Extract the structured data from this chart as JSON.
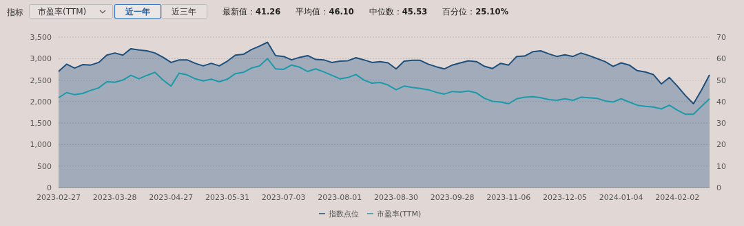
{
  "chart_data": {
    "type": "area",
    "annotations": [
      "指标",
      "市盈率(TTM)",
      "近一年",
      "近三年",
      "最新值：41.26",
      "平均值：46.10",
      "中位数：45.53",
      "百分位：25.10%"
    ],
    "categories": [
      "2023-02-27",
      null,
      null,
      null,
      null,
      null,
      null,
      "2023-03-28",
      null,
      null,
      null,
      null,
      null,
      null,
      "2023-04-27",
      null,
      null,
      null,
      null,
      null,
      null,
      "2023-05-31",
      null,
      null,
      null,
      null,
      null,
      null,
      "2023-07-03",
      null,
      null,
      null,
      null,
      null,
      null,
      "2023-08-01",
      null,
      null,
      null,
      null,
      null,
      null,
      "2023-08-30",
      null,
      null,
      null,
      null,
      null,
      null,
      "2023-09-28",
      null,
      null,
      null,
      null,
      null,
      null,
      "2023-11-06",
      null,
      null,
      null,
      null,
      null,
      null,
      "2023-12-05",
      null,
      null,
      null,
      null,
      null,
      null,
      "2024-01-04",
      null,
      null,
      null,
      null,
      null,
      null,
      "2024-02-02",
      null,
      null,
      null,
      null
    ],
    "series": [
      {
        "name": "指数点位",
        "color": "#1d4f7c",
        "values": [
          2700,
          2870,
          2780,
          2860,
          2850,
          2910,
          3080,
          3130,
          3080,
          3230,
          3200,
          3180,
          3130,
          3030,
          2910,
          2970,
          2970,
          2890,
          2830,
          2890,
          2830,
          2940,
          3080,
          3100,
          3210,
          3290,
          3380,
          3070,
          3050,
          2970,
          3030,
          3070,
          2980,
          2970,
          2910,
          2940,
          2950,
          3020,
          2970,
          2910,
          2930,
          2900,
          2760,
          2940,
          2960,
          2960,
          2870,
          2810,
          2760,
          2850,
          2900,
          2950,
          2930,
          2820,
          2770,
          2890,
          2850,
          3050,
          3060,
          3160,
          3180,
          3110,
          3050,
          3090,
          3050,
          3130,
          3070,
          3000,
          2930,
          2820,
          2900,
          2850,
          2720,
          2690,
          2630,
          2410,
          2560,
          2360,
          2140,
          1950,
          2270,
          2620
        ]
      },
      {
        "name": "市盈率(TTM)",
        "type": "line",
        "axis": "y2",
        "color": "#1a9aaa",
        "values": [
          41.8,
          44.2,
          43.2,
          43.8,
          45.2,
          46.4,
          49.2,
          49,
          50,
          52.2,
          50.6,
          52.2,
          53.6,
          50,
          47.2,
          53.2,
          52.4,
          50.6,
          49.6,
          50.4,
          49.2,
          50.4,
          53,
          53.6,
          55.6,
          56.6,
          60,
          55.2,
          55,
          57,
          56,
          54,
          55.2,
          53.8,
          52.2,
          50.6,
          51.2,
          52.6,
          50,
          48.6,
          48.9,
          47.7,
          45.5,
          47.2,
          46.6,
          46.1,
          45.5,
          44.3,
          43.5,
          44.7,
          44.4,
          44.9,
          44,
          41.5,
          40.1,
          39.8,
          39,
          41.3,
          42,
          42.3,
          41.8,
          40.9,
          40.6,
          41.3,
          40.6,
          42,
          41.8,
          41.5,
          40.3,
          39.8,
          41.3,
          39.8,
          38.3,
          37.8,
          37.5,
          36.6,
          38.3,
          36,
          34.1,
          34.1,
          37.8,
          41.3
        ]
      }
    ],
    "ylim": [
      0,
      3500
    ],
    "yticks": [
      0,
      500,
      {
        "value": 1000,
        "label": "1,000"
      },
      {
        "value": 1500,
        "label": "1,500"
      },
      {
        "value": 2000,
        "label": "2,000"
      },
      {
        "value": 2500,
        "label": "2,500"
      },
      {
        "value": 3000,
        "label": "3,000"
      },
      {
        "value": 3500,
        "label": "3,500"
      }
    ],
    "y2lim": [
      0,
      70
    ],
    "y2ticks": [
      0,
      10,
      20,
      30,
      40,
      50,
      60,
      70
    ],
    "grid": "y",
    "legend": "bottom",
    "marker": "none"
  }
}
